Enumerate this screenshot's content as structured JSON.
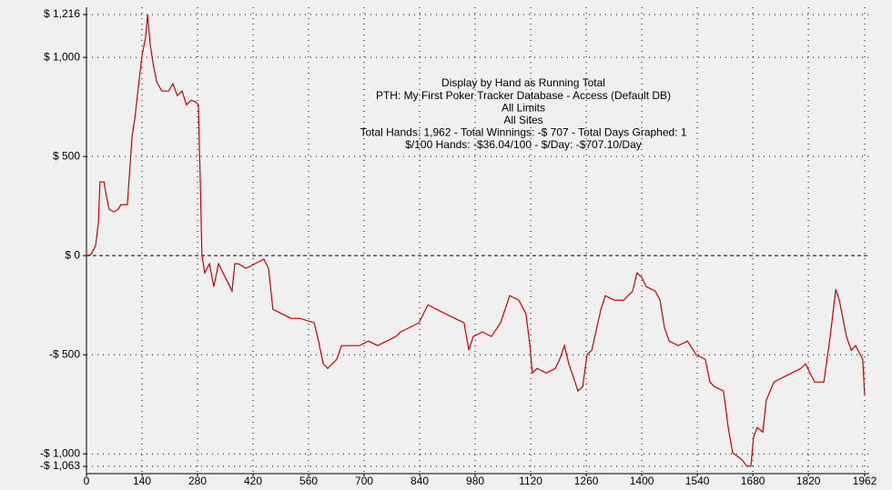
{
  "chart_data": {
    "type": "line",
    "annotations": [
      "Display by Hand as Running Total",
      "PTH: My First Poker Tracker Database - Access (Default DB)",
      "All Limits",
      "All Sites",
      "Total Hands: 1,962 - Total Winnings: -$ 707 - Total Days Graphed: 1",
      "$/100 Hands: -$36.04/100 - $/Day: -$707.10/Day"
    ],
    "x": [
      0,
      11,
      23,
      30,
      34,
      44,
      50,
      57,
      69,
      80,
      87,
      103,
      115,
      122,
      131,
      140,
      149,
      154,
      161,
      168,
      177,
      190,
      207,
      218,
      229,
      241,
      252,
      264,
      275,
      282,
      287,
      291,
      298,
      310,
      321,
      333,
      344,
      356,
      367,
      374,
      383,
      402,
      425,
      447,
      459,
      470,
      493,
      516,
      539,
      574,
      585,
      597,
      608,
      631,
      643,
      665,
      688,
      711,
      734,
      757,
      780,
      792,
      815,
      838,
      861,
      883,
      906,
      929,
      952,
      964,
      975,
      998,
      1021,
      1044,
      1067,
      1090,
      1108,
      1118,
      1124,
      1136,
      1159,
      1182,
      1193,
      1205,
      1216,
      1228,
      1239,
      1251,
      1262,
      1274,
      1297,
      1308,
      1331,
      1354,
      1377,
      1388,
      1400,
      1411,
      1434,
      1446,
      1457,
      1469,
      1492,
      1515,
      1537,
      1560,
      1572,
      1583,
      1606,
      1618,
      1629,
      1652,
      1664,
      1675,
      1682,
      1691,
      1705,
      1714,
      1733,
      1755,
      1778,
      1801,
      1813,
      1824,
      1836,
      1859,
      1875,
      1889,
      1898,
      1916,
      1928,
      1939,
      1957,
      1962
    ],
    "series": [
      {
        "color": "#cc0000",
        "values": [
          0,
          5,
          50,
          165,
          372,
          372,
          303,
          234,
          220,
          234,
          257,
          257,
          601,
          693,
          853,
          1009,
          1101,
          1216,
          1060,
          968,
          876,
          830,
          830,
          867,
          807,
          830,
          761,
          784,
          775,
          761,
          372,
          5,
          -87,
          -41,
          -156,
          -41,
          -87,
          -133,
          -179,
          -41,
          -41,
          -64,
          -41,
          -18,
          -64,
          -271,
          -294,
          -317,
          -317,
          -339,
          -431,
          -546,
          -569,
          -523,
          -454,
          -454,
          -454,
          -431,
          -454,
          -431,
          -408,
          -385,
          -362,
          -339,
          -248,
          -271,
          -294,
          -317,
          -339,
          -477,
          -408,
          -385,
          -408,
          -339,
          -202,
          -225,
          -294,
          -454,
          -592,
          -569,
          -592,
          -569,
          -523,
          -454,
          -546,
          -615,
          -683,
          -661,
          -500,
          -477,
          -271,
          -202,
          -225,
          -225,
          -179,
          -87,
          -110,
          -156,
          -179,
          -225,
          -362,
          -431,
          -454,
          -431,
          -500,
          -523,
          -638,
          -661,
          -683,
          -867,
          -995,
          -1028,
          -1060,
          -1063,
          -913,
          -867,
          -890,
          -729,
          -638,
          -615,
          -592,
          -569,
          -546,
          -592,
          -638,
          -638,
          -408,
          -170,
          -225,
          -408,
          -477,
          -454,
          -523,
          -707
        ]
      }
    ],
    "xlim": [
      0,
      1962
    ],
    "xticks": [
      0,
      140,
      280,
      420,
      560,
      700,
      840,
      980,
      1120,
      1260,
      1400,
      1540,
      1680,
      1820,
      1962
    ],
    "ylim": [
      -1063,
      1216
    ],
    "yticks": [
      {
        "value": 1216,
        "label": "$ 1,216"
      },
      {
        "value": 1000,
        "label": "$ 1,000"
      },
      {
        "value": 500,
        "label": "$ 500"
      },
      {
        "value": 0,
        "label": "$ 0"
      },
      {
        "value": -500,
        "label": "-$ 500"
      },
      {
        "value": -1000,
        "label": "-$ 1,000"
      },
      {
        "value": -1063,
        "label": "-$ 1,063"
      }
    ],
    "grid": true
  }
}
